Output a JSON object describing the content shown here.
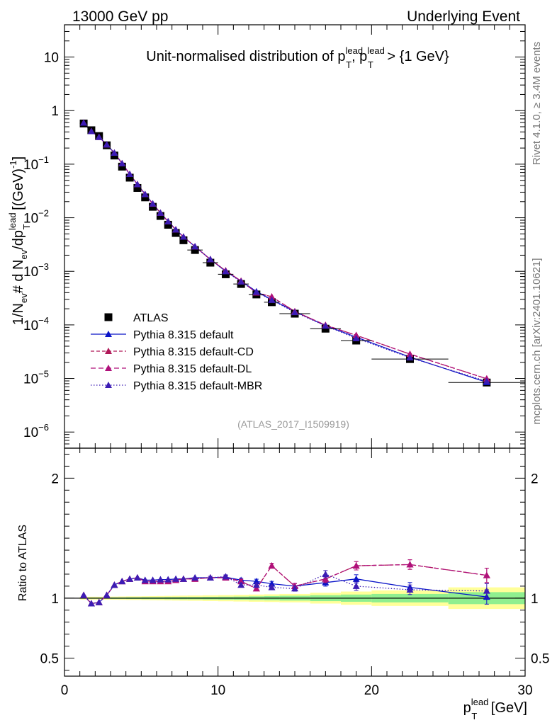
{
  "header": {
    "left": "13000 GeV pp",
    "right": "Underlying Event"
  },
  "side_text": {
    "rivet": "Rivet 4.1.0, ≥ 3.4M events",
    "mcplots": "mcplots.cern.ch [arXiv:2401.10621]"
  },
  "chart_data": [
    {
      "type": "scatter",
      "panel": "main",
      "title_parts": {
        "prefix": "Unit-normalised distribution of p",
        "sup": "lead",
        "sub": "T",
        "mid": ", p",
        "sup2": "lead",
        "sub2": "T",
        "suffix": " > {1 GeV}"
      },
      "ylabel": "1/N_ev # d N_ev/dp_T^lead [(GeV)^-1]",
      "ylabel_parts": {
        "a": "1/N",
        "b": "ev",
        "c": "# d N",
        "d": "ev",
        "e": "/dp",
        "f": "lead",
        "g": "T",
        "h": " [(GeV)",
        "i": "-1",
        "j": "]"
      },
      "yscale": "log",
      "ylim": [
        5e-07,
        40
      ],
      "xlim": [
        0,
        30
      ],
      "ytick_labels": [
        {
          "v": 10,
          "base": "10",
          "exp": ""
        },
        {
          "v": 1,
          "base": "1",
          "exp": ""
        },
        {
          "v": 0.1,
          "base": "10",
          "exp": "−1"
        },
        {
          "v": 0.01,
          "base": "10",
          "exp": "−2"
        },
        {
          "v": 0.001,
          "base": "10",
          "exp": "−3"
        },
        {
          "v": 0.0001,
          "base": "10",
          "exp": "−4"
        },
        {
          "v": 1e-05,
          "base": "10",
          "exp": "−5"
        },
        {
          "v": 1e-06,
          "base": "10",
          "exp": "−6"
        }
      ],
      "x": [
        1.25,
        1.75,
        2.25,
        2.75,
        3.25,
        3.75,
        4.25,
        4.75,
        5.25,
        5.75,
        6.25,
        6.75,
        7.25,
        7.75,
        8.5,
        9.5,
        10.5,
        11.5,
        12.5,
        13.5,
        15,
        17,
        19,
        22.5,
        27.5
      ],
      "xerr": [
        0.25,
        0.25,
        0.25,
        0.25,
        0.25,
        0.25,
        0.25,
        0.25,
        0.25,
        0.25,
        0.25,
        0.25,
        0.25,
        0.25,
        0.5,
        0.5,
        0.5,
        0.5,
        0.5,
        0.5,
        1,
        1,
        1,
        2.5,
        2.5
      ],
      "series": [
        {
          "name": "ATLAS",
          "values": [
            0.575,
            0.43,
            0.335,
            0.225,
            0.145,
            0.09,
            0.056,
            0.036,
            0.024,
            0.016,
            0.0108,
            0.0074,
            0.0052,
            0.0038,
            0.0025,
            0.00145,
            0.00088,
            0.00058,
            0.00037,
            0.000265,
            0.000162,
            8.5e-05,
            5.1e-05,
            2.3e-05,
            8.4e-06
          ]
        },
        {
          "name": "Pythia 8.315 default",
          "values": [
            0.59,
            0.41,
            0.32,
            0.232,
            0.162,
            0.103,
            0.065,
            0.042,
            0.0275,
            0.0183,
            0.0123,
            0.0085,
            0.006,
            0.0044,
            0.0029,
            0.00168,
            0.001,
            0.000655,
            0.00042,
            0.000295,
            0.000178,
            9.7e-05,
            5.9e-05,
            2.5e-05,
            8.5e-06
          ]
        },
        {
          "name": "Pythia 8.315 default-CD",
          "values": [
            0.59,
            0.41,
            0.32,
            0.232,
            0.162,
            0.103,
            0.065,
            0.042,
            0.0274,
            0.0182,
            0.0123,
            0.0085,
            0.006,
            0.0044,
            0.0029,
            0.00167,
            0.00103,
            0.00066,
            0.0004,
            0.000335,
            0.000178,
            9.9e-05,
            6.4e-05,
            2.85e-05,
            9.9e-06
          ]
        },
        {
          "name": "Pythia 8.315 default-DL",
          "values": [
            0.59,
            0.41,
            0.32,
            0.232,
            0.162,
            0.103,
            0.065,
            0.042,
            0.0274,
            0.0182,
            0.0123,
            0.0085,
            0.006,
            0.0044,
            0.0029,
            0.00167,
            0.00103,
            0.00066,
            0.0004,
            0.000335,
            0.000178,
            9.9e-05,
            6.4e-05,
            2.85e-05,
            9.9e-06
          ]
        },
        {
          "name": "Pythia 8.315 default-MBR",
          "values": [
            0.59,
            0.41,
            0.32,
            0.232,
            0.162,
            0.103,
            0.065,
            0.042,
            0.0275,
            0.0183,
            0.0123,
            0.0085,
            0.006,
            0.0044,
            0.0029,
            0.00167,
            0.001,
            0.00064,
            0.00041,
            0.00029,
            0.000172,
            9.6e-05,
            5.6e-05,
            2.45e-05,
            8.9e-06
          ]
        }
      ],
      "annotation": "(ATLAS_2017_I1509919)",
      "legend_position": "bottom-left"
    },
    {
      "type": "scatter",
      "panel": "ratio",
      "ylabel": "Ratio to ATLAS",
      "ylim": [
        0.35,
        2.25
      ],
      "yticks": [
        0.5,
        1,
        2
      ],
      "ytick_labels": [
        "0.5",
        "1",
        "2"
      ],
      "xlim": [
        0,
        30
      ],
      "xticks": [
        0,
        10,
        20,
        30
      ],
      "xtick_labels": [
        "0",
        "10",
        "20",
        "30"
      ],
      "xlabel_parts": {
        "a": "p",
        "sup": "lead",
        "sub": "T",
        "b": " [GeV]"
      },
      "x": [
        1.25,
        1.75,
        2.25,
        2.75,
        3.25,
        3.75,
        4.25,
        4.75,
        5.25,
        5.75,
        6.25,
        6.75,
        7.25,
        7.75,
        8.5,
        9.5,
        10.5,
        11.5,
        12.5,
        13.5,
        15,
        17,
        19,
        22.5,
        27.5
      ],
      "band_edges": [
        1,
        1.5,
        2,
        2.5,
        3,
        3.5,
        4,
        4.5,
        5,
        5.5,
        6,
        6.5,
        7,
        7.5,
        8,
        9,
        10,
        11,
        12,
        13,
        14,
        16,
        18,
        20,
        25,
        30
      ],
      "band_inner": [
        0.005,
        0.005,
        0.005,
        0.005,
        0.006,
        0.006,
        0.007,
        0.007,
        0.008,
        0.008,
        0.008,
        0.009,
        0.009,
        0.01,
        0.01,
        0.011,
        0.012,
        0.013,
        0.015,
        0.017,
        0.02,
        0.025,
        0.03,
        0.035,
        0.05
      ],
      "band_outer": [
        0.012,
        0.012,
        0.012,
        0.013,
        0.013,
        0.014,
        0.015,
        0.015,
        0.016,
        0.017,
        0.018,
        0.019,
        0.02,
        0.021,
        0.022,
        0.024,
        0.026,
        0.028,
        0.03,
        0.032,
        0.035,
        0.045,
        0.055,
        0.065,
        0.09
      ],
      "series": [
        {
          "name": "Pythia 8.315 default",
          "values": [
            1.025,
            0.955,
            0.965,
            1.025,
            1.11,
            1.14,
            1.16,
            1.17,
            1.15,
            1.15,
            1.155,
            1.155,
            1.16,
            1.16,
            1.17,
            1.17,
            1.175,
            1.15,
            1.14,
            1.12,
            1.1,
            1.13,
            1.16,
            1.09,
            1.01
          ],
          "err": [
            0.005,
            0.005,
            0.005,
            0.005,
            0.005,
            0.006,
            0.006,
            0.007,
            0.007,
            0.008,
            0.008,
            0.009,
            0.01,
            0.01,
            0.011,
            0.012,
            0.014,
            0.016,
            0.018,
            0.02,
            0.022,
            0.03,
            0.035,
            0.04,
            0.06
          ]
        },
        {
          "name": "Pythia 8.315 default-CD",
          "values": [
            1.025,
            0.955,
            0.965,
            1.025,
            1.11,
            1.14,
            1.16,
            1.17,
            1.14,
            1.14,
            1.14,
            1.14,
            1.15,
            1.16,
            1.16,
            1.17,
            1.17,
            1.14,
            1.08,
            1.27,
            1.1,
            1.16,
            1.27,
            1.28,
            1.19
          ],
          "err": [
            0.005,
            0.005,
            0.005,
            0.005,
            0.005,
            0.006,
            0.006,
            0.007,
            0.007,
            0.008,
            0.008,
            0.009,
            0.01,
            0.01,
            0.011,
            0.012,
            0.014,
            0.016,
            0.018,
            0.02,
            0.022,
            0.03,
            0.035,
            0.04,
            0.06
          ]
        },
        {
          "name": "Pythia 8.315 default-DL",
          "values": [
            1.025,
            0.955,
            0.965,
            1.025,
            1.11,
            1.14,
            1.16,
            1.17,
            1.14,
            1.14,
            1.14,
            1.14,
            1.15,
            1.16,
            1.16,
            1.17,
            1.17,
            1.14,
            1.08,
            1.27,
            1.1,
            1.16,
            1.27,
            1.28,
            1.19
          ],
          "err": [
            0.005,
            0.005,
            0.005,
            0.005,
            0.005,
            0.006,
            0.006,
            0.007,
            0.007,
            0.008,
            0.008,
            0.009,
            0.01,
            0.01,
            0.011,
            0.012,
            0.014,
            0.016,
            0.018,
            0.02,
            0.022,
            0.03,
            0.035,
            0.04,
            0.06
          ]
        },
        {
          "name": "Pythia 8.315 default-MBR",
          "values": [
            1.025,
            0.955,
            0.965,
            1.025,
            1.11,
            1.14,
            1.16,
            1.17,
            1.15,
            1.15,
            1.155,
            1.155,
            1.16,
            1.16,
            1.17,
            1.17,
            1.18,
            1.11,
            1.11,
            1.09,
            1.08,
            1.2,
            1.1,
            1.07,
            1.06
          ],
          "err": [
            0.005,
            0.005,
            0.005,
            0.005,
            0.005,
            0.006,
            0.006,
            0.007,
            0.007,
            0.008,
            0.008,
            0.009,
            0.01,
            0.01,
            0.011,
            0.012,
            0.014,
            0.016,
            0.018,
            0.02,
            0.022,
            0.03,
            0.035,
            0.04,
            0.06
          ]
        }
      ]
    }
  ],
  "styles": {
    "ATLAS": {
      "color": "#000000",
      "marker": "square",
      "dash": ""
    },
    "Pythia 8.315 default": {
      "color": "#0a14c8",
      "marker": "triangle",
      "dash": ""
    },
    "Pythia 8.315 default-CD": {
      "color": "#b01858",
      "marker": "triangle",
      "dash": "5,3"
    },
    "Pythia 8.315 default-DL": {
      "color": "#b0107a",
      "marker": "triangle",
      "dash": "7,4"
    },
    "Pythia 8.315 default-MBR": {
      "color": "#3c1cb4",
      "marker": "triangle",
      "dash": "1.5,2.5"
    },
    "band_inner": "#8fef8f",
    "band_outer": "#ffff99"
  }
}
